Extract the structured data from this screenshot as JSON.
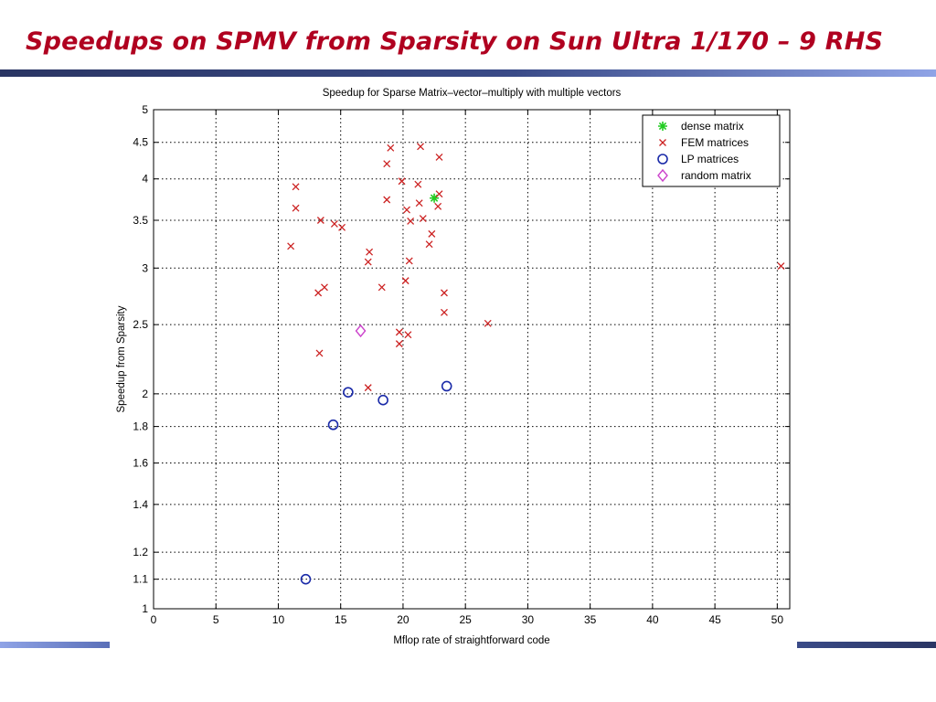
{
  "slide": {
    "title": "Speedups on SPMV from Sparsity on Sun Ultra 1/170 – 9 RHS"
  },
  "colors": {
    "title": "#b00020",
    "fem": "#cc2222",
    "lp": "#1a2aa8",
    "dense": "#22cc22",
    "random": "#cc44cc"
  },
  "chart_data": {
    "type": "scatter",
    "title": "Speedup for Sparse Matrix–vector–multiply with multiple vectors",
    "xlabel": "Mflop rate of straightforward code",
    "ylabel": "Speedup from Sparsity",
    "xlim": [
      0,
      51
    ],
    "ylim": [
      1,
      5
    ],
    "yscale": "log",
    "grid": true,
    "legend_position": "top-right",
    "x_ticks": [
      0,
      5,
      10,
      15,
      20,
      25,
      30,
      35,
      40,
      45,
      50
    ],
    "x_tick_labels": [
      "0",
      "5",
      "10",
      "15",
      "20",
      "25",
      "30",
      "35",
      "40",
      "45",
      "50"
    ],
    "y_ticks": [
      1,
      1.1,
      1.2,
      1.4,
      1.6,
      1.8,
      2,
      2.5,
      3,
      3.5,
      4,
      4.5,
      5
    ],
    "y_tick_labels": [
      "1",
      "1.1",
      "1.2",
      "1.4",
      "1.6",
      "1.8",
      "2",
      "2.5",
      "3",
      "3.5",
      "4",
      "4.5",
      "5"
    ],
    "series": [
      {
        "name": "dense matrix",
        "marker": "star",
        "points": [
          [
            22.5,
            3.76
          ]
        ]
      },
      {
        "name": "FEM matrices",
        "marker": "x",
        "points": [
          [
            11.0,
            3.22
          ],
          [
            11.4,
            3.9
          ],
          [
            11.4,
            3.64
          ],
          [
            13.2,
            2.77
          ],
          [
            13.3,
            2.28
          ],
          [
            13.4,
            3.5
          ],
          [
            13.7,
            2.82
          ],
          [
            14.5,
            3.46
          ],
          [
            15.1,
            3.42
          ],
          [
            17.2,
            2.04
          ],
          [
            17.2,
            3.06
          ],
          [
            17.3,
            3.16
          ],
          [
            18.3,
            2.82
          ],
          [
            18.7,
            3.74
          ],
          [
            18.7,
            4.2
          ],
          [
            19.0,
            4.42
          ],
          [
            19.7,
            2.44
          ],
          [
            19.7,
            2.35
          ],
          [
            19.9,
            3.97
          ],
          [
            20.2,
            2.88
          ],
          [
            20.3,
            3.62
          ],
          [
            20.4,
            2.42
          ],
          [
            20.5,
            3.07
          ],
          [
            20.6,
            3.49
          ],
          [
            21.2,
            3.93
          ],
          [
            21.3,
            3.7
          ],
          [
            21.4,
            4.44
          ],
          [
            21.6,
            3.52
          ],
          [
            22.1,
            3.24
          ],
          [
            22.3,
            3.35
          ],
          [
            22.8,
            3.66
          ],
          [
            22.9,
            3.81
          ],
          [
            22.9,
            4.29
          ],
          [
            23.3,
            2.77
          ],
          [
            23.3,
            2.6
          ],
          [
            26.8,
            2.51
          ],
          [
            50.3,
            3.02
          ]
        ]
      },
      {
        "name": "LP matrices",
        "marker": "circle",
        "points": [
          [
            12.2,
            1.1
          ],
          [
            14.4,
            1.81
          ],
          [
            15.6,
            2.01
          ],
          [
            18.4,
            1.96
          ],
          [
            23.5,
            2.05
          ]
        ]
      },
      {
        "name": "random matrix",
        "marker": "diamond",
        "points": [
          [
            16.6,
            2.45
          ]
        ]
      }
    ]
  }
}
